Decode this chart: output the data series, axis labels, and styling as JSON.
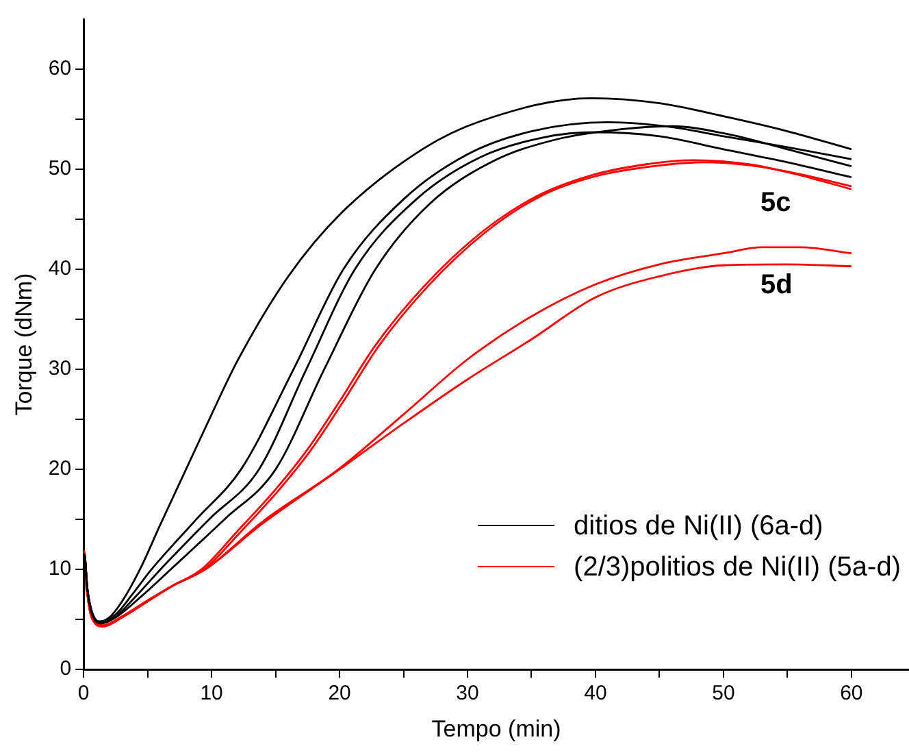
{
  "chart_data": {
    "type": "line",
    "xlabel": "Tempo (min)",
    "ylabel": "Torque (dNm)",
    "xlim": [
      0,
      64.5
    ],
    "ylim": [
      0,
      65
    ],
    "xticks": [
      0,
      {
        "value": 5,
        "label": null
      },
      10,
      {
        "value": 15,
        "label": null
      },
      20,
      {
        "value": 25,
        "label": null
      },
      30,
      {
        "value": 35,
        "label": null
      },
      40,
      {
        "value": 45,
        "label": null
      },
      50,
      {
        "value": 55,
        "label": null
      },
      60
    ],
    "yticks": [
      0,
      {
        "value": 5,
        "label": null
      },
      10,
      {
        "value": 15,
        "label": null
      },
      20,
      {
        "value": 25,
        "label": null
      },
      30,
      {
        "value": 35,
        "label": null
      },
      40,
      {
        "value": 45,
        "label": null
      },
      50,
      {
        "value": 55,
        "label": null
      },
      60
    ],
    "grid": false,
    "legend": "bottom right",
    "marker": "none",
    "line_style": "solid",
    "annotations": [
      "5c",
      "5d"
    ],
    "series": [
      {
        "name": "ditios de Ni(II) (6a-d)",
        "color": "#000000",
        "x": [
          0,
          0.05,
          0.3,
          0.6,
          1.2,
          2,
          3,
          4.4,
          6,
          8,
          10,
          12,
          16,
          20.2,
          26.6,
          31,
          39.7,
          45,
          50,
          55,
          60
        ],
        "values": [
          0,
          11.5,
          8,
          6,
          4.8,
          5.2,
          6.8,
          10,
          14.5,
          20,
          25.5,
          30.8,
          39.3,
          45.7,
          52.1,
          54.8,
          57.1,
          56.6,
          55.3,
          53.8,
          52
        ]
      },
      {
        "color": "#000000",
        "x": [
          0,
          0.05,
          0.3,
          0.7,
          1.3,
          2.5,
          3.8,
          5.3,
          8.8,
          12.3,
          16.4,
          20.3,
          25,
          30,
          35,
          41,
          46,
          50,
          55,
          60
        ],
        "values": [
          0,
          11.5,
          8,
          5.5,
          4.8,
          5.5,
          7.5,
          10,
          15,
          20,
          30,
          40,
          47,
          51.5,
          53.8,
          54.7,
          54.2,
          53.3,
          52.2,
          51
        ]
      },
      {
        "color": "#000000",
        "x": [
          0,
          0.05,
          0.3,
          0.7,
          1.3,
          2.5,
          4,
          6,
          9.8,
          13.7,
          17.4,
          21.2,
          26,
          31,
          36,
          40,
          45,
          50,
          55,
          60
        ],
        "values": [
          0,
          11.5,
          8,
          5.5,
          4.7,
          5.3,
          7.2,
          10,
          15,
          20,
          30,
          40,
          47,
          51.2,
          53.2,
          53.7,
          53.3,
          52,
          50.7,
          49.2
        ]
      },
      {
        "color": "#000000",
        "x": [
          0,
          0.05,
          0.3,
          0.7,
          1.4,
          2.5,
          4.5,
          6.8,
          11,
          15,
          18.8,
          22.8,
          27,
          32,
          37,
          42,
          46,
          50,
          55,
          60
        ],
        "values": [
          0,
          11.5,
          8,
          5.4,
          4.6,
          5.2,
          7.3,
          10,
          15,
          20,
          30,
          40,
          46.5,
          50.8,
          53,
          54,
          54.3,
          53.6,
          52,
          50.3
        ]
      },
      {
        "name": "(2/3)politios de Ni(II) (5a-d)",
        "color": "#ff0000",
        "x": [
          0,
          0.05,
          0.3,
          0.7,
          1.5,
          3,
          5,
          7,
          9.2,
          12,
          15,
          17.5,
          20,
          22.8,
          26.6,
          31,
          35.4,
          39.7,
          44,
          47.6,
          52,
          56,
          60
        ],
        "values": [
          0,
          11.8,
          7.5,
          5,
          4.4,
          5.3,
          6.9,
          8.4,
          10,
          13.8,
          18,
          22,
          26.8,
          32.4,
          38.3,
          43.6,
          47.3,
          49.4,
          50.5,
          50.9,
          50.5,
          49.4,
          48
        ]
      },
      {
        "color": "#ff0000",
        "x": [
          0,
          0.05,
          0.3,
          0.7,
          1.5,
          3,
          5,
          7,
          9.4,
          12.3,
          15.3,
          17.8,
          20.3,
          23.1,
          26.9,
          31.3,
          35.7,
          40,
          44.5,
          48.5,
          52,
          56,
          60
        ],
        "values": [
          0,
          11.8,
          7.5,
          5,
          4.4,
          5.3,
          6.9,
          8.4,
          10,
          13.8,
          18,
          22,
          26.8,
          32.4,
          38.3,
          43.6,
          47.3,
          49.3,
          50.3,
          50.7,
          50.4,
          49.5,
          48.3
        ]
      },
      {
        "color": "#ff0000",
        "x": [
          0,
          0.05,
          0.3,
          0.7,
          1.5,
          3,
          5,
          7,
          9.5,
          14,
          19.9,
          25,
          30,
          35,
          40,
          45,
          50,
          53,
          56,
          60
        ],
        "values": [
          0,
          11.8,
          7.5,
          5,
          4.3,
          5.2,
          6.8,
          8.4,
          10,
          14.8,
          20,
          25.5,
          31,
          35.3,
          38.5,
          40.5,
          41.6,
          42.2,
          42.2,
          41.6
        ]
      },
      {
        "color": "#ff0000",
        "x": [
          0,
          0.05,
          0.3,
          0.7,
          1.5,
          3,
          5,
          7,
          9.5,
          14,
          20,
          25,
          30,
          35,
          40,
          45,
          50,
          55,
          60
        ],
        "values": [
          0,
          11.8,
          7.5,
          5,
          4.3,
          5.2,
          6.8,
          8.4,
          10,
          14.6,
          20,
          24.6,
          29,
          33,
          37.2,
          39.3,
          40.4,
          40.5,
          40.3
        ]
      }
    ]
  }
}
